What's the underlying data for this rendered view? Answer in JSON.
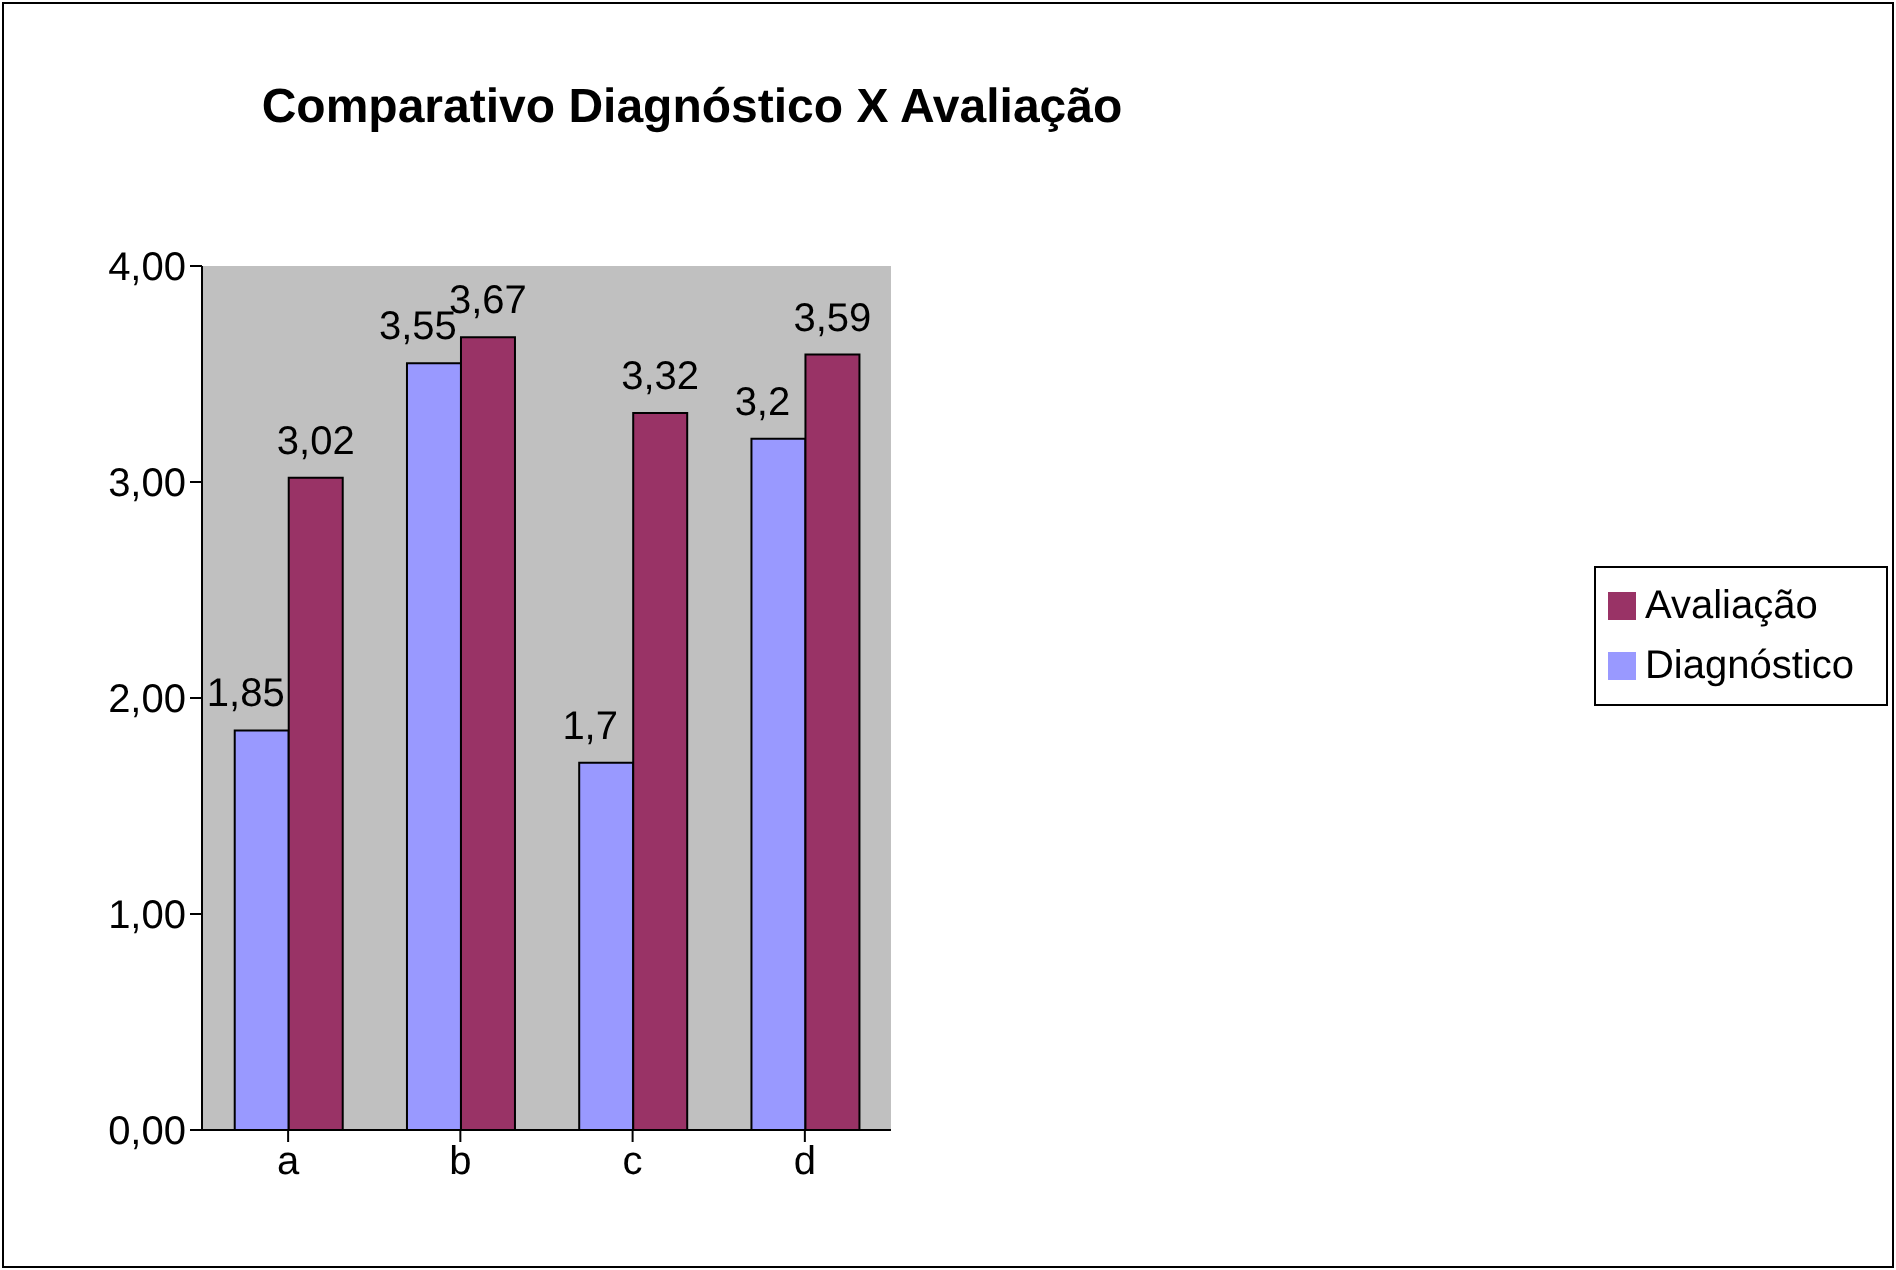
{
  "chart_data": {
    "type": "bar",
    "title": "Comparativo Diagnóstico X Avaliação",
    "categories": [
      "a",
      "b",
      "c",
      "d"
    ],
    "series": [
      {
        "name": "Diagnóstico",
        "color": "#9999ff",
        "values": [
          1.85,
          3.55,
          1.7,
          3.2
        ],
        "value_labels": [
          "1,85",
          "3,55",
          "1,7",
          "3,2"
        ]
      },
      {
        "name": "Avaliação",
        "color": "#993366",
        "values": [
          3.02,
          3.67,
          3.32,
          3.59
        ],
        "value_labels": [
          "3,02",
          "3,67",
          "3,32",
          "3,59"
        ]
      }
    ],
    "ylim": [
      0,
      4
    ],
    "yticks": [
      {
        "value": 0,
        "label": "0,00"
      },
      {
        "value": 1,
        "label": "1,00"
      },
      {
        "value": 2,
        "label": "2,00"
      },
      {
        "value": 3,
        "label": "3,00"
      },
      {
        "value": 4,
        "label": "4,00"
      }
    ],
    "grid": false,
    "legend": "right"
  }
}
